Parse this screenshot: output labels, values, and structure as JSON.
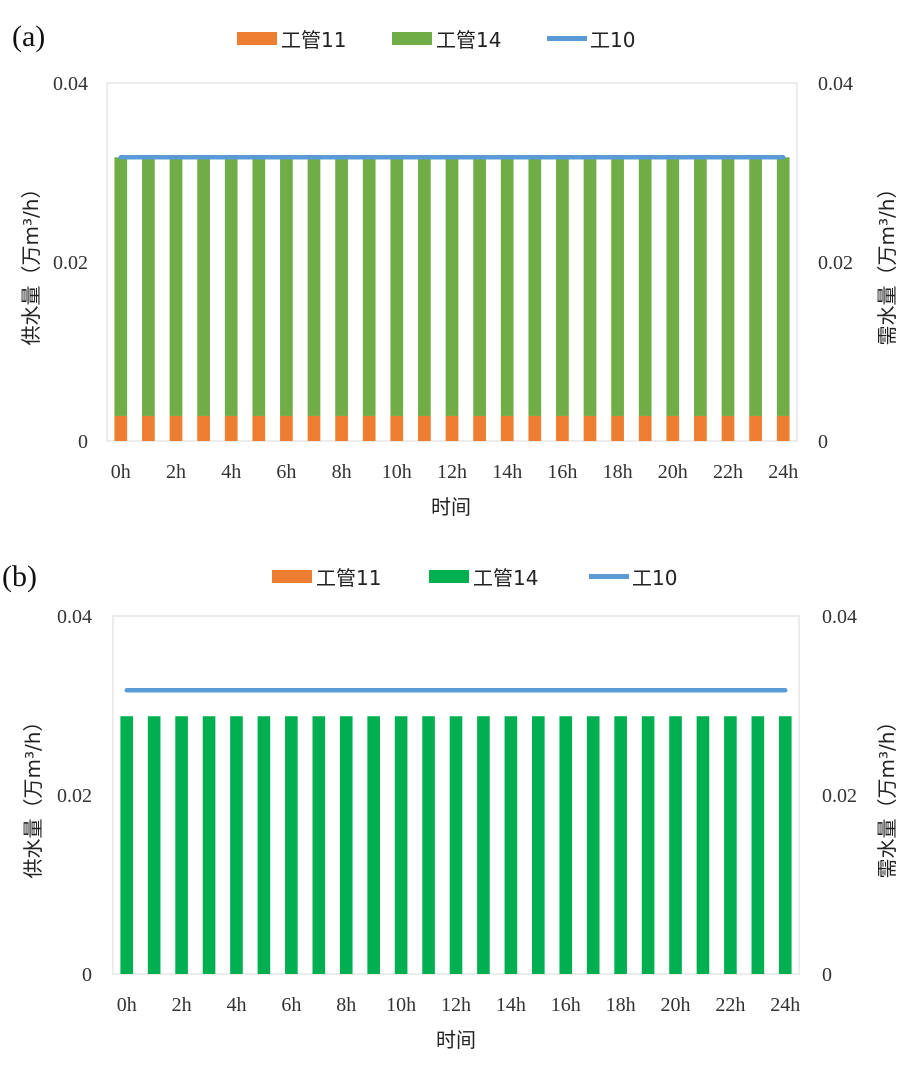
{
  "chart_data": [
    {
      "type": "bar",
      "panel_label": "(a)",
      "stacked": true,
      "categories": [
        "0h",
        "1h",
        "2h",
        "3h",
        "4h",
        "5h",
        "6h",
        "7h",
        "8h",
        "9h",
        "10h",
        "11h",
        "12h",
        "13h",
        "14h",
        "15h",
        "16h",
        "17h",
        "18h",
        "19h",
        "20h",
        "21h",
        "22h",
        "23h",
        "24h"
      ],
      "tick_labels": [
        "0h",
        "2h",
        "4h",
        "6h",
        "8h",
        "10h",
        "12h",
        "14h",
        "16h",
        "18h",
        "20h",
        "22h",
        "24h"
      ],
      "series": [
        {
          "name": "工管11",
          "kind": "bar",
          "color": "#ED7D31",
          "values": [
            0.0028,
            0.0028,
            0.0028,
            0.0028,
            0.0028,
            0.0028,
            0.0028,
            0.0028,
            0.0028,
            0.0028,
            0.0028,
            0.0028,
            0.0028,
            0.0028,
            0.0028,
            0.0028,
            0.0028,
            0.0028,
            0.0028,
            0.0028,
            0.0028,
            0.0028,
            0.0028,
            0.0028,
            0.0028
          ]
        },
        {
          "name": "工管14",
          "kind": "bar",
          "color": "#70AD47",
          "values": [
            0.0289,
            0.0289,
            0.0289,
            0.0289,
            0.0289,
            0.0289,
            0.0289,
            0.0289,
            0.0289,
            0.0289,
            0.0289,
            0.0289,
            0.0289,
            0.0289,
            0.0289,
            0.0289,
            0.0289,
            0.0289,
            0.0289,
            0.0289,
            0.0289,
            0.0289,
            0.0289,
            0.0289,
            0.0289
          ]
        },
        {
          "name": "工10",
          "kind": "line",
          "axis": "right",
          "color": "#5B9BD5",
          "values": [
            0.0317,
            0.0317,
            0.0317,
            0.0317,
            0.0317,
            0.0317,
            0.0317,
            0.0317,
            0.0317,
            0.0317,
            0.0317,
            0.0317,
            0.0317,
            0.0317,
            0.0317,
            0.0317,
            0.0317,
            0.0317,
            0.0317,
            0.0317,
            0.0317,
            0.0317,
            0.0317,
            0.0317,
            0.0317
          ]
        }
      ],
      "xlabel": "时间",
      "ylabel": "供水量（万m³/h）",
      "ylabel_right": "需水量（万m³/h）",
      "ylim": [
        0,
        0.04
      ],
      "y2lim": [
        0,
        0.04
      ],
      "yticks": [
        "0",
        "0.02",
        "0.04"
      ],
      "y2ticks": [
        "0",
        "0.02",
        "0.04"
      ],
      "legend_position": "top"
    },
    {
      "type": "bar",
      "panel_label": "(b)",
      "stacked": true,
      "categories": [
        "0h",
        "1h",
        "2h",
        "3h",
        "4h",
        "5h",
        "6h",
        "7h",
        "8h",
        "9h",
        "10h",
        "11h",
        "12h",
        "13h",
        "14h",
        "15h",
        "16h",
        "17h",
        "18h",
        "19h",
        "20h",
        "21h",
        "22h",
        "23h",
        "24h"
      ],
      "tick_labels": [
        "0h",
        "2h",
        "4h",
        "6h",
        "8h",
        "10h",
        "12h",
        "14h",
        "16h",
        "18h",
        "20h",
        "22h",
        "24h"
      ],
      "series": [
        {
          "name": "工管11",
          "kind": "bar",
          "color": "#ED7D31",
          "values": [
            0,
            0,
            0,
            0,
            0,
            0,
            0,
            0,
            0,
            0,
            0,
            0,
            0,
            0,
            0,
            0,
            0,
            0,
            0,
            0,
            0,
            0,
            0,
            0,
            0
          ]
        },
        {
          "name": "工管14",
          "kind": "bar",
          "color": "#00B050",
          "values": [
            0.0288,
            0.0288,
            0.0288,
            0.0288,
            0.0288,
            0.0288,
            0.0288,
            0.0288,
            0.0288,
            0.0288,
            0.0288,
            0.0288,
            0.0288,
            0.0288,
            0.0288,
            0.0288,
            0.0288,
            0.0288,
            0.0288,
            0.0288,
            0.0288,
            0.0288,
            0.0288,
            0.0288,
            0.0288
          ]
        },
        {
          "name": "工10",
          "kind": "line",
          "axis": "right",
          "color": "#5B9BD5",
          "values": [
            0.0317,
            0.0317,
            0.0317,
            0.0317,
            0.0317,
            0.0317,
            0.0317,
            0.0317,
            0.0317,
            0.0317,
            0.0317,
            0.0317,
            0.0317,
            0.0317,
            0.0317,
            0.0317,
            0.0317,
            0.0317,
            0.0317,
            0.0317,
            0.0317,
            0.0317,
            0.0317,
            0.0317,
            0.0317
          ]
        }
      ],
      "xlabel": "时间",
      "ylabel": "供水量（万m³/h）",
      "ylabel_right": "需水量（万m³/h）",
      "ylim": [
        0,
        0.04
      ],
      "y2lim": [
        0,
        0.04
      ],
      "yticks": [
        "0",
        "0.02",
        "0.04"
      ],
      "y2ticks": [
        "0",
        "0.02",
        "0.04"
      ],
      "legend_position": "top"
    }
  ]
}
